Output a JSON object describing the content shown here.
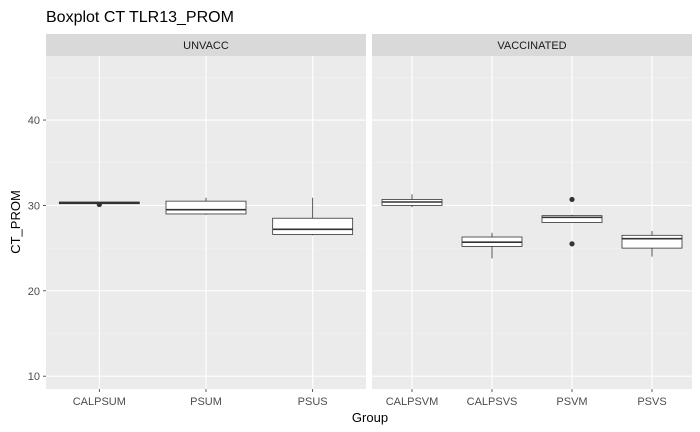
{
  "chart_data": {
    "type": "boxplot",
    "title": "Boxplot CT TLR13_PROM",
    "xlabel": "Group",
    "ylabel": "CT_PROM",
    "ylim": [
      8.5,
      47.5
    ],
    "y_ticks": [
      10,
      20,
      30,
      40
    ],
    "grid": true,
    "colors": {
      "panel_bg": "#ebebeb",
      "strip_bg": "#d9d9d9",
      "grid_major": "#ffffff",
      "grid_minor": "#f4f4f4",
      "box_fill": "#ffffff",
      "box_line": "#333333"
    },
    "facets": [
      {
        "label": "UNVACC",
        "groups": [
          {
            "name": "CALPSUM",
            "whisker_low": 30.1,
            "q1": 30.2,
            "median": 30.3,
            "q3": 30.4,
            "whisker_high": 30.4,
            "outliers": [
              30.1
            ]
          },
          {
            "name": "PSUM",
            "whisker_low": 28.9,
            "q1": 29.0,
            "median": 29.5,
            "q3": 30.5,
            "whisker_high": 30.9,
            "outliers": []
          },
          {
            "name": "PSUS",
            "whisker_low": 26.5,
            "q1": 26.6,
            "median": 27.2,
            "q3": 28.5,
            "whisker_high": 30.9,
            "outliers": []
          }
        ]
      },
      {
        "label": "VACCINATED",
        "groups": [
          {
            "name": "CALPSVM",
            "whisker_low": 29.8,
            "q1": 30.0,
            "median": 30.4,
            "q3": 30.7,
            "whisker_high": 31.3,
            "outliers": []
          },
          {
            "name": "CALPSVS",
            "whisker_low": 23.8,
            "q1": 25.2,
            "median": 25.7,
            "q3": 26.3,
            "whisker_high": 26.8,
            "outliers": []
          },
          {
            "name": "PSVM",
            "whisker_low": 28.0,
            "q1": 28.0,
            "median": 28.6,
            "q3": 28.8,
            "whisker_high": 28.9,
            "outliers": [
              30.7,
              25.5
            ]
          },
          {
            "name": "PSVS",
            "whisker_low": 24.0,
            "q1": 25.0,
            "median": 26.1,
            "q3": 26.5,
            "whisker_high": 27.0,
            "outliers": []
          }
        ]
      }
    ]
  }
}
